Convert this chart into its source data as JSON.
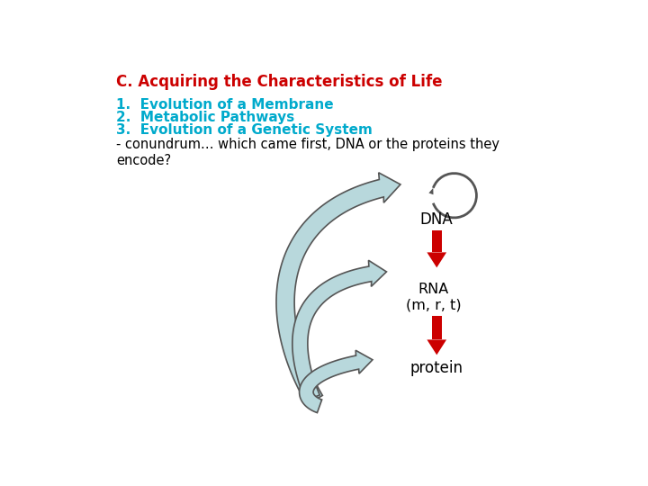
{
  "title": "C. Acquiring the Characteristics of Life",
  "title_color": "#CC0000",
  "items": [
    "1.  Evolution of a Membrane",
    "2.  Metabolic Pathways",
    "3.  Evolution of a Genetic System"
  ],
  "item_color": "#00AACC",
  "body_text": "- conundrum… which came first, DNA or the proteins they\nencode?",
  "body_color": "#000000",
  "label_dna": "DNA",
  "label_rna": "RNA\n(m, r, t)",
  "label_protein": "protein",
  "label_color": "#000000",
  "arrow_color": "#CC0000",
  "curl_fill": "#B8D8DC",
  "curl_edge": "#555555",
  "bg_color": "#FFFFFF"
}
